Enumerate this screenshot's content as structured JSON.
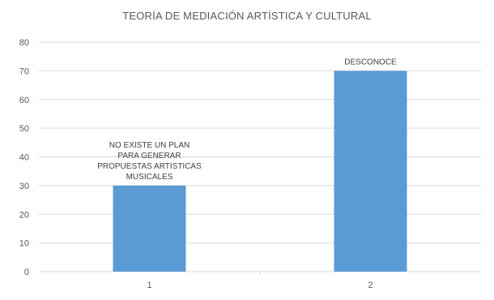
{
  "chart_data": {
    "type": "bar",
    "title": "TEORÍA DE MEDIACIÓN ARTÍSTICA Y CULTURAL",
    "categories": [
      "1",
      "2"
    ],
    "values": [
      30,
      70
    ],
    "data_labels": [
      [
        "NO EXISTE UN PLAN",
        "PARA GENERAR",
        "PROPUESTAS ARTISTICAS",
        "MUSICALES"
      ],
      [
        "DESCONOCE"
      ]
    ],
    "y_ticks": [
      "0",
      "10",
      "20",
      "30",
      "40",
      "50",
      "60",
      "70",
      "80"
    ],
    "ylim": [
      0,
      80
    ],
    "grid": true,
    "legend": "none",
    "colors": {
      "bar": "#5b9bd5",
      "grid": "#d9d9d9",
      "text": "#595959"
    }
  }
}
